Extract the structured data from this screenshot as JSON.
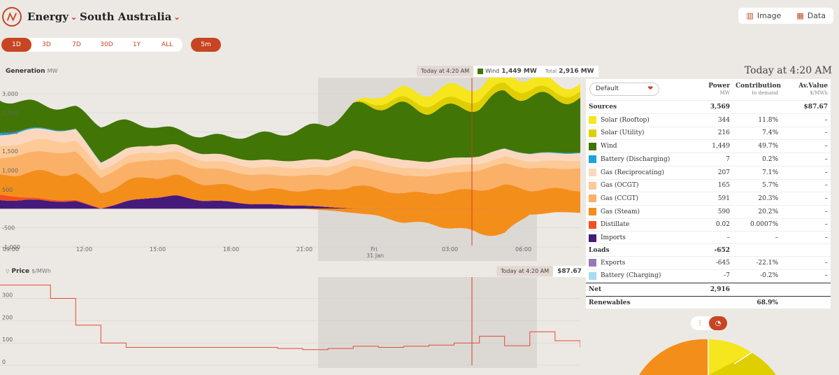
{
  "header": {
    "section_label": "Energy",
    "region_label": "South Australia",
    "image_button": "Image",
    "data_button": "Data"
  },
  "ranges": [
    "1D",
    "3D",
    "7D",
    "30D",
    "1Y",
    "ALL"
  ],
  "active_range": "1D",
  "interval_label": "5m",
  "generation": {
    "title": "Generation",
    "unit": "MW",
    "hover_time": "Today at 4:20 AM",
    "wind_label": "Wind",
    "wind_value": "1,449 MW",
    "total_label": "Total",
    "total_value": "2,916 MW",
    "y_ticks": [
      "3,000",
      "2,500",
      "2,000",
      "1,500",
      "1,000",
      "500",
      "-500",
      "-1,000"
    ],
    "x_ticks": [
      "09:00",
      "12:00",
      "15:00",
      "18:00",
      "21:00",
      "Fri",
      "03:00",
      "06:00"
    ],
    "x_subtick": "31 Jan"
  },
  "price": {
    "title": "Price",
    "unit": "$/MWh",
    "hover_time": "Today at 4:20 AM",
    "value": "$87.67",
    "y_ticks": [
      "300",
      "200",
      "100",
      "0"
    ]
  },
  "chart_data": [
    {
      "type": "area",
      "title": "Generation",
      "ylabel": "MW",
      "ylim": [
        -1000,
        3200
      ],
      "x": [
        "08:00",
        "09:00",
        "10:00",
        "11:00",
        "12:00",
        "13:00",
        "14:00",
        "15:00",
        "16:00",
        "17:00",
        "18:00",
        "19:00",
        "20:00",
        "21:00",
        "22:00",
        "23:00",
        "00:00",
        "01:00",
        "02:00",
        "03:00",
        "04:00",
        "05:00",
        "06:00",
        "07:00"
      ],
      "series": [
        {
          "name": "Imports",
          "values": [
            220,
            230,
            200,
            190,
            0,
            180,
            300,
            320,
            220,
            180,
            120,
            100,
            80,
            40,
            0,
            0,
            0,
            0,
            0,
            0,
            0,
            0,
            0,
            0
          ]
        },
        {
          "name": "Distillate",
          "values": [
            150,
            60,
            40,
            30,
            10,
            10,
            10,
            10,
            10,
            10,
            10,
            10,
            10,
            10,
            10,
            5,
            5,
            5,
            5,
            5,
            0,
            0,
            0,
            0
          ]
        },
        {
          "name": "Gas (Steam)",
          "values": [
            500,
            650,
            700,
            700,
            400,
            500,
            550,
            500,
            450,
            400,
            380,
            380,
            400,
            420,
            600,
            500,
            400,
            400,
            450,
            500,
            590,
            500,
            500,
            500
          ]
        },
        {
          "name": "Gas (CCGT)",
          "values": [
            450,
            500,
            550,
            550,
            400,
            450,
            450,
            420,
            400,
            400,
            380,
            380,
            380,
            400,
            500,
            500,
            450,
            450,
            480,
            500,
            591,
            550,
            550,
            550
          ]
        },
        {
          "name": "Gas (OCGT)",
          "values": [
            300,
            300,
            300,
            300,
            200,
            200,
            200,
            200,
            200,
            200,
            200,
            200,
            200,
            200,
            200,
            200,
            200,
            180,
            180,
            170,
            165,
            180,
            200,
            200
          ]
        },
        {
          "name": "Gas (Reciprocating)",
          "values": [
            300,
            300,
            280,
            280,
            200,
            200,
            180,
            180,
            180,
            180,
            180,
            180,
            200,
            200,
            200,
            200,
            200,
            200,
            200,
            200,
            207,
            200,
            200,
            200
          ]
        },
        {
          "name": "Battery (Discharging)",
          "values": [
            60,
            30,
            20,
            10,
            10,
            0,
            0,
            0,
            0,
            0,
            0,
            0,
            0,
            0,
            0,
            0,
            0,
            0,
            0,
            0,
            7,
            10,
            20,
            20
          ]
        },
        {
          "name": "Wind",
          "values": [
            900,
            700,
            600,
            550,
            1000,
            700,
            500,
            400,
            450,
            500,
            650,
            700,
            800,
            950,
            1150,
            1300,
            1400,
            1350,
            1300,
            1300,
            1449,
            1500,
            1400,
            1400
          ]
        },
        {
          "name": "Solar (Utility)",
          "values": [
            0,
            0,
            0,
            0,
            0,
            0,
            0,
            0,
            0,
            0,
            0,
            0,
            0,
            0,
            0,
            120,
            150,
            180,
            200,
            210,
            216,
            180,
            170,
            160
          ]
        },
        {
          "name": "Solar (Rooftop)",
          "values": [
            0,
            0,
            0,
            0,
            0,
            0,
            0,
            0,
            0,
            0,
            0,
            0,
            0,
            0,
            0,
            200,
            250,
            300,
            330,
            340,
            344,
            300,
            250,
            200
          ]
        },
        {
          "name": "Exports",
          "values": [
            0,
            0,
            0,
            0,
            0,
            0,
            0,
            0,
            0,
            0,
            0,
            0,
            0,
            -50,
            -100,
            -200,
            -350,
            -400,
            -500,
            -650,
            -645,
            -150,
            -100,
            -100
          ]
        }
      ]
    },
    {
      "type": "line",
      "title": "Price",
      "ylabel": "$/MWh",
      "ylim": [
        0,
        380
      ],
      "x": [
        "08:00",
        "09:00",
        "10:00",
        "11:00",
        "12:00",
        "13:00",
        "14:00",
        "15:00",
        "16:00",
        "17:00",
        "18:00",
        "19:00",
        "20:00",
        "21:00",
        "22:00",
        "23:00",
        "00:00",
        "01:00",
        "02:00",
        "03:00",
        "04:00",
        "05:00",
        "06:00",
        "07:00"
      ],
      "series": [
        {
          "name": "Price",
          "values": [
            360,
            360,
            300,
            180,
            100,
            80,
            80,
            80,
            80,
            80,
            80,
            75,
            70,
            75,
            85,
            80,
            85,
            90,
            100,
            130,
            87.67,
            150,
            110,
            80
          ]
        }
      ]
    }
  ],
  "summary": {
    "time": "Today at 4:20 AM",
    "dropdown": "Default",
    "col_power": "Power",
    "col_power_unit": "MW",
    "col_contrib": "Contribution",
    "col_contrib_unit": "to demand",
    "col_av": "Av.Value",
    "col_av_unit": "$/MWh",
    "sources_label": "Sources",
    "sources_power": "3,569",
    "sources_av": "$87.67",
    "rows": [
      {
        "name": "Solar (Rooftop)",
        "power": "344",
        "contrib": "11.8%",
        "av": "–",
        "color": "#f5e61d"
      },
      {
        "name": "Solar (Utility)",
        "power": "216",
        "contrib": "7.4%",
        "av": "–",
        "color": "#e0cf00"
      },
      {
        "name": "Wind",
        "power": "1,449",
        "contrib": "49.7%",
        "av": "–",
        "color": "#417505"
      },
      {
        "name": "Battery (Discharging)",
        "power": "7",
        "contrib": "0.2%",
        "av": "–",
        "color": "#1da2e0"
      },
      {
        "name": "Gas (Reciprocating)",
        "power": "207",
        "contrib": "7.1%",
        "av": "–",
        "color": "#fbd8bd"
      },
      {
        "name": "Gas (OCGT)",
        "power": "165",
        "contrib": "5.7%",
        "av": "–",
        "color": "#fdc996"
      },
      {
        "name": "Gas (CCGT)",
        "power": "591",
        "contrib": "20.3%",
        "av": "–",
        "color": "#fbb067"
      },
      {
        "name": "Gas (Steam)",
        "power": "590",
        "contrib": "20.2%",
        "av": "–",
        "color": "#f48e1b"
      },
      {
        "name": "Distillate",
        "power": "0.02",
        "contrib": "0.0007%",
        "av": "–",
        "color": "#f35020"
      },
      {
        "name": "Imports",
        "power": "–",
        "contrib": "–",
        "av": "–",
        "color": "#441a7a"
      }
    ],
    "loads_label": "Loads",
    "loads_power": "-652",
    "load_rows": [
      {
        "name": "Exports",
        "power": "-645",
        "contrib": "-22.1%",
        "av": "–",
        "color": "#977ab5"
      },
      {
        "name": "Battery (Charging)",
        "power": "-7",
        "contrib": "-0.2%",
        "av": "–",
        "color": "#a9daf5"
      }
    ],
    "net_label": "Net",
    "net_power": "2,916",
    "renewables_label": "Renewables",
    "renewables_contrib": "68.9%"
  }
}
